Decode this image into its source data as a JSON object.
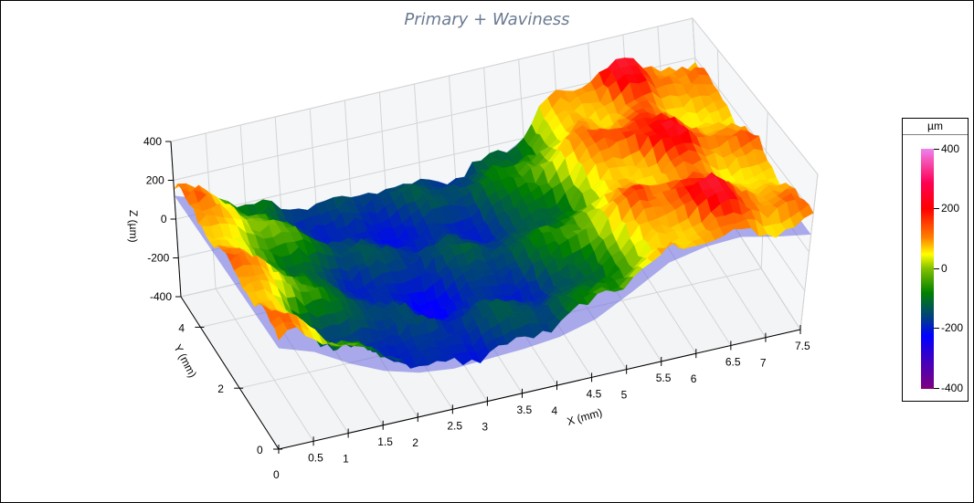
{
  "chart_data": {
    "type": "surface3d",
    "title": "Primary + Waviness",
    "xlabel": "X (mm)",
    "ylabel": "Y (mm)",
    "zlabel": "Z (µm)",
    "xlim": [
      0,
      7.5
    ],
    "ylim": [
      0,
      5
    ],
    "zlim": [
      -400,
      400
    ],
    "x_ticks": [
      "0",
      "0.5",
      "1",
      "1.5",
      "2",
      "2.5",
      "3",
      "3.5",
      "4",
      "4.5",
      "5",
      "5.5",
      "6",
      "6.5",
      "7",
      "7.5"
    ],
    "y_ticks": [
      "0",
      "2",
      "4"
    ],
    "z_ticks": [
      "-400",
      "-200",
      "0",
      "200",
      "400"
    ],
    "grid": true,
    "colorbar": {
      "title": "µm",
      "ticks": [
        "400",
        "200",
        "0",
        "-200",
        "-400"
      ],
      "range": [
        -400,
        400
      ],
      "colors": [
        "#800080",
        "#0000ff",
        "#008000",
        "#ffff00",
        "#ff0000",
        "#ee82ee"
      ]
    },
    "surface_profile_x": {
      "x": [
        0,
        0.5,
        1,
        1.5,
        2,
        2.5,
        3,
        3.5,
        4,
        4.5,
        5,
        5.5,
        6,
        6.5,
        7,
        7.5
      ],
      "z_mean": [
        180,
        120,
        20,
        -60,
        -110,
        -130,
        -120,
        -110,
        -90,
        -40,
        60,
        170,
        210,
        220,
        180,
        150
      ]
    },
    "surface_notes": "Rough measured surface: high (~200 µm, red/orange) at X≈0 and X≈5.5–7, deep valley (down to ~-300 µm, blue) near X≈1–3; translucent blue waviness reference plane beneath"
  },
  "legend": {
    "title": "µm",
    "labels": [
      "400",
      "200",
      "0",
      "-200",
      "-400"
    ]
  }
}
